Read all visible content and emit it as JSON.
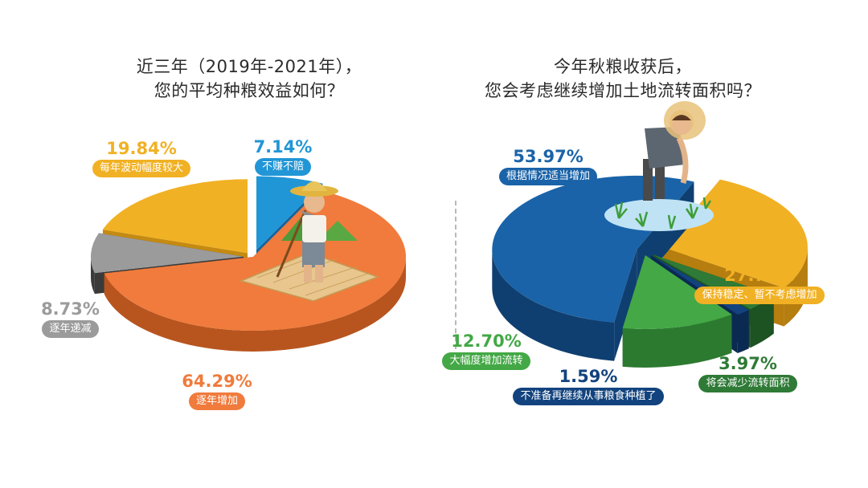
{
  "colors": {
    "blue": "#2196d6",
    "orange": "#f07b3c",
    "gray": "#9b9b9b",
    "yellow": "#f1b124",
    "navy": "#1a63a8",
    "gold": "#f1b124",
    "green": "#43a845",
    "darkgreen": "#2e7a36",
    "deepblue": "#12437e"
  },
  "chart_data": [
    {
      "type": "pie",
      "title": "近三年（2019年-2021年），您的平均种粮效益如何？",
      "title_lines": [
        "近三年（2019年-2021年），",
        "您的平均种粮效益如何？"
      ],
      "slices": [
        {
          "label": "不赚不赔",
          "value": 7.14,
          "display": "7.14%",
          "color": "#2196d6",
          "depth_color": "#1565a0"
        },
        {
          "label": "逐年增加",
          "value": 64.29,
          "display": "64.29%",
          "color": "#f07b3c",
          "depth_color": "#b8551f"
        },
        {
          "label": "逐年递减",
          "value": 8.73,
          "display": "8.73%",
          "color": "#9b9b9b",
          "depth_color": "#3a3a3a"
        },
        {
          "label": "每年波动幅度较大",
          "value": 19.84,
          "display": "19.84%",
          "color": "#f1b124",
          "depth_color": "#c48a12"
        }
      ],
      "illustration": "farmer-with-hoe-icon"
    },
    {
      "type": "pie",
      "title": "今年秋粮收获后，您会考虑继续增加土地流转面积吗？",
      "title_lines": [
        "今年秋粮收获后，",
        "您会考虑继续增加土地流转面积吗？"
      ],
      "slices": [
        {
          "label": "根据情况适当增加",
          "value": 53.97,
          "display": "53.97%",
          "color": "#1a63a8",
          "depth_color": "#0f3f70"
        },
        {
          "label": "保持稳定、暂不考虑增加",
          "value": 27.78,
          "display": "27.78%",
          "color": "#f1b124",
          "depth_color": "#b67d0f"
        },
        {
          "label": "将会减少流转面积",
          "value": 3.97,
          "display": "3.97%",
          "color": "#2e7a36",
          "depth_color": "#1d5222"
        },
        {
          "label": "不准备再继续从事粮食种植了",
          "value": 1.59,
          "display": "1.59%",
          "color": "#12437e",
          "depth_color": "#0a2a52"
        },
        {
          "label": "大幅度增加流转",
          "value": 12.7,
          "display": "12.70%",
          "color": "#43a845",
          "depth_color": "#2c7a30"
        }
      ],
      "illustration": "farmer-planting-rice-icon"
    }
  ]
}
